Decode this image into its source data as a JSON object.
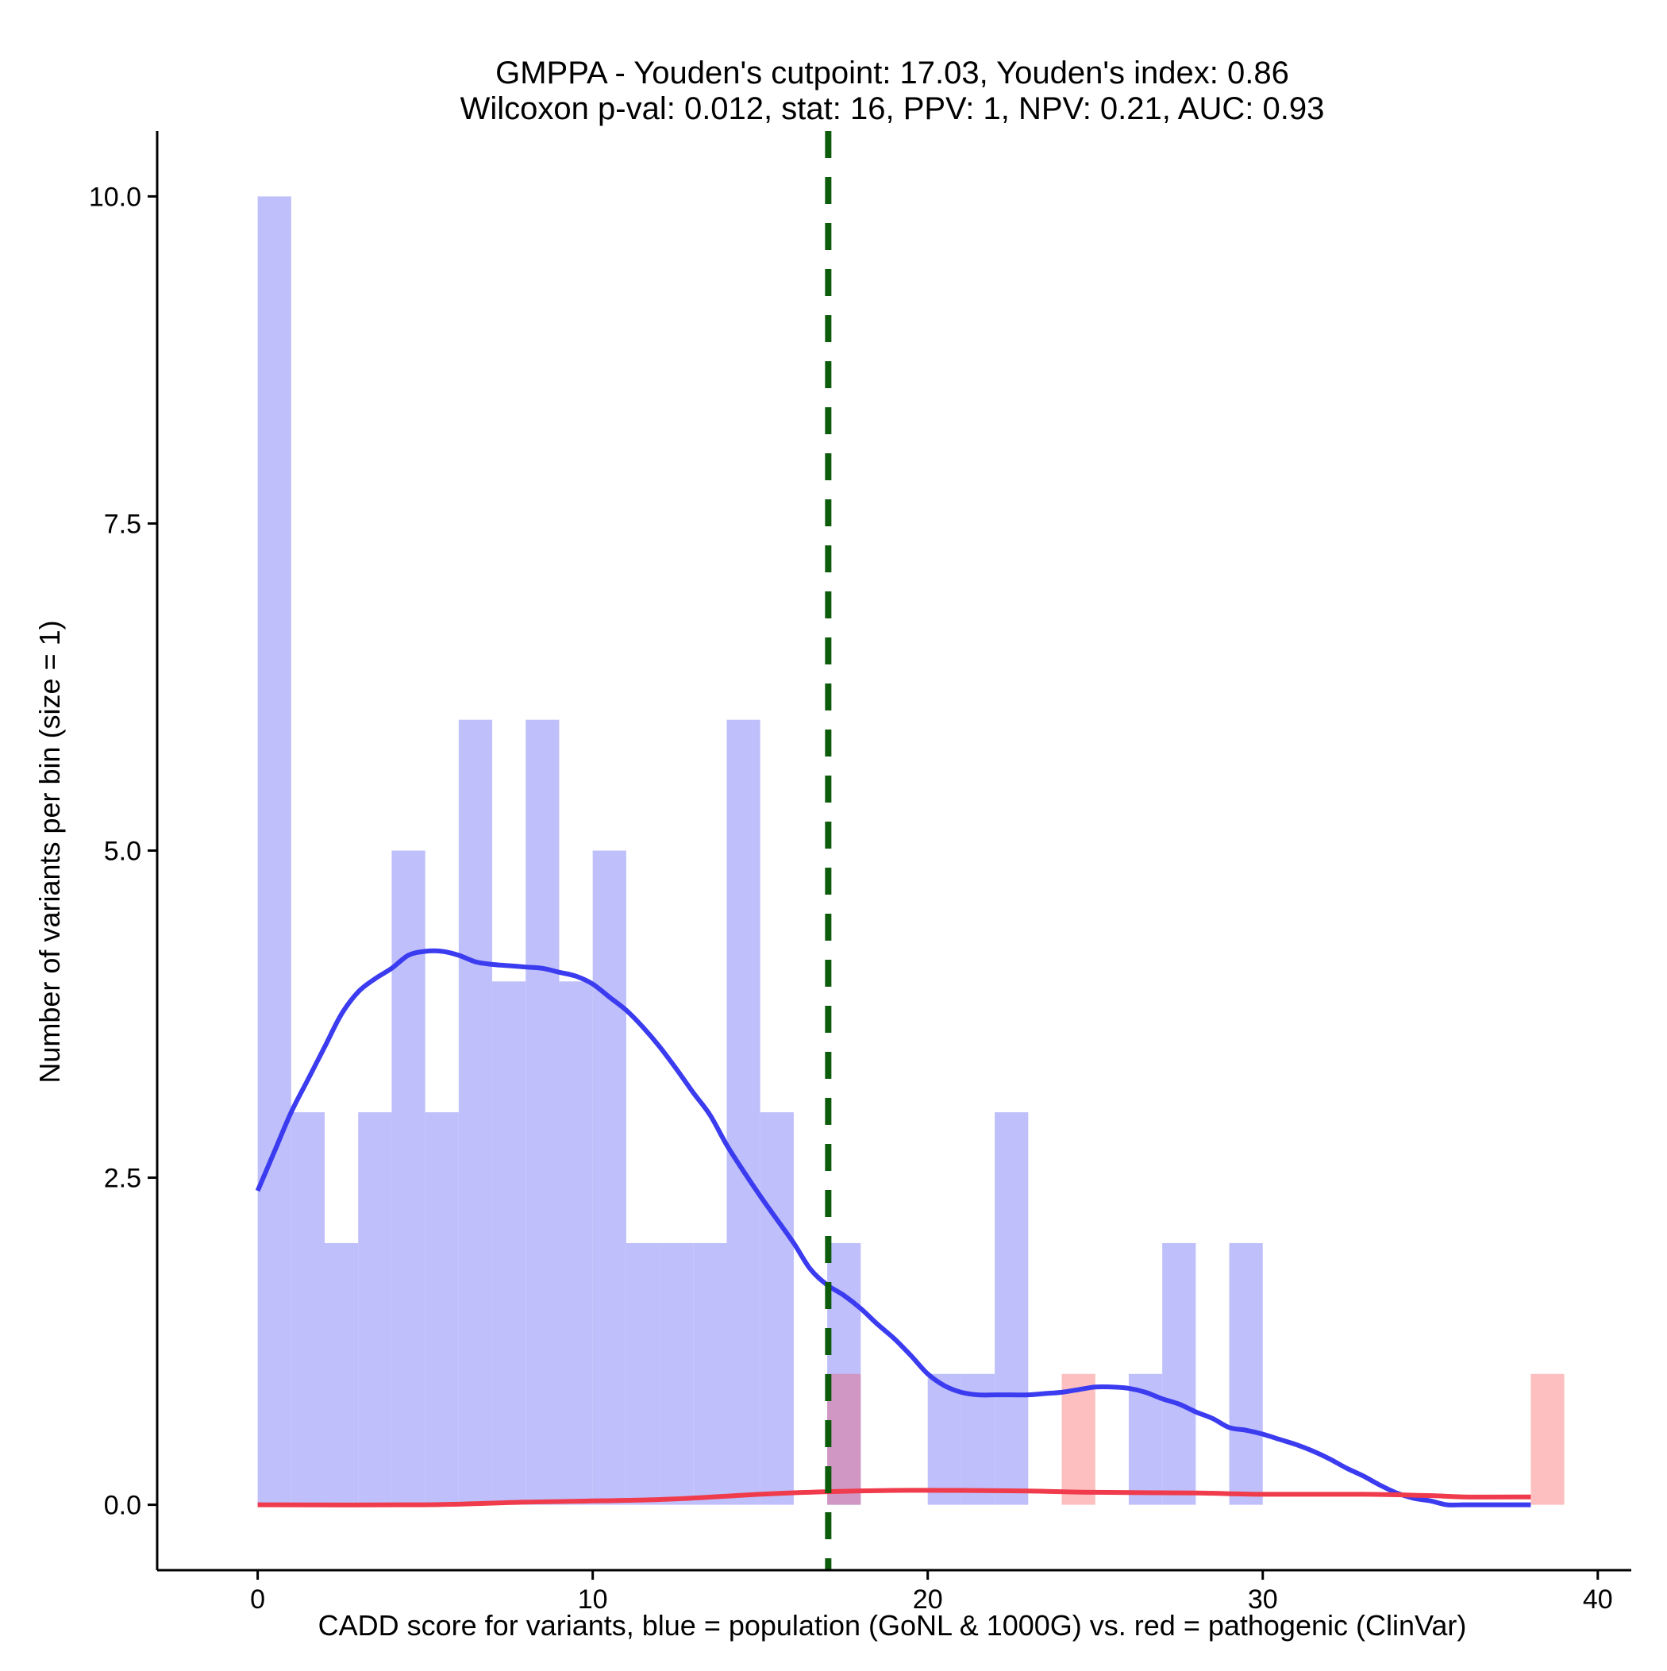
{
  "chart_data": {
    "type": "histogram",
    "title_lines": [
      "GMPPA - Youden's cutpoint: 17.03, Youden's index: 0.86",
      "Wilcoxon p-val: 0.012, stat: 16, PPV: 1, NPV: 0.21, AUC: 0.93"
    ],
    "xlabel": "CADD score for variants, blue = population (GoNL & 1000G) vs. red = pathogenic (ClinVar)",
    "ylabel": "Number of variants per bin (size = 1)",
    "xlim": [
      -3,
      41
    ],
    "ylim": [
      -0.5,
      10.5
    ],
    "x_ticks": [
      0,
      10,
      20,
      30,
      40
    ],
    "x_tick_labels": [
      "0",
      "10",
      "20",
      "30",
      "40"
    ],
    "y_ticks": [
      0,
      2.5,
      5,
      7.5,
      10
    ],
    "y_tick_labels": [
      "0.0",
      "2.5",
      "5.0",
      "7.5",
      "10.0"
    ],
    "bin_width": 1,
    "cutpoint": 17.03,
    "colors": {
      "population_bars": "#bfbffb",
      "pathogenic_bars": "#fdbfbf",
      "overlap_bars": "#d097c4",
      "population_density": "#3b3bf0",
      "pathogenic_density": "#ef3b4b",
      "cutpoint_line": "#0c5c0c",
      "axis": "#000000"
    },
    "series": [
      {
        "role": "population",
        "color_word": "blue",
        "bins": [
          {
            "start": 0,
            "count": 10
          },
          {
            "start": 1,
            "count": 3
          },
          {
            "start": 2,
            "count": 2
          },
          {
            "start": 3,
            "count": 3
          },
          {
            "start": 4,
            "count": 5
          },
          {
            "start": 5,
            "count": 3
          },
          {
            "start": 6,
            "count": 6
          },
          {
            "start": 7,
            "count": 4
          },
          {
            "start": 8,
            "count": 6
          },
          {
            "start": 9,
            "count": 4
          },
          {
            "start": 10,
            "count": 5
          },
          {
            "start": 11,
            "count": 2
          },
          {
            "start": 12,
            "count": 2
          },
          {
            "start": 13,
            "count": 2
          },
          {
            "start": 14,
            "count": 6
          },
          {
            "start": 15,
            "count": 3
          },
          {
            "start": 17,
            "count": 2
          },
          {
            "start": 20,
            "count": 1
          },
          {
            "start": 21,
            "count": 1
          },
          {
            "start": 22,
            "count": 3
          },
          {
            "start": 26,
            "count": 1
          },
          {
            "start": 27,
            "count": 2
          },
          {
            "start": 29,
            "count": 2
          }
        ],
        "density": [
          [
            0,
            2.4
          ],
          [
            0.5,
            2.7
          ],
          [
            1,
            3.0
          ],
          [
            1.5,
            3.25
          ],
          [
            2,
            3.5
          ],
          [
            2.5,
            3.75
          ],
          [
            3,
            3.92
          ],
          [
            3.5,
            4.02
          ],
          [
            4,
            4.1
          ],
          [
            4.5,
            4.2
          ],
          [
            5,
            4.23
          ],
          [
            5.5,
            4.23
          ],
          [
            6,
            4.2
          ],
          [
            6.5,
            4.15
          ],
          [
            7,
            4.13
          ],
          [
            7.5,
            4.12
          ],
          [
            8,
            4.11
          ],
          [
            8.5,
            4.1
          ],
          [
            9,
            4.07
          ],
          [
            9.5,
            4.04
          ],
          [
            10,
            3.98
          ],
          [
            10.5,
            3.88
          ],
          [
            11,
            3.78
          ],
          [
            11.5,
            3.65
          ],
          [
            12,
            3.5
          ],
          [
            12.5,
            3.33
          ],
          [
            13,
            3.15
          ],
          [
            13.5,
            2.98
          ],
          [
            14,
            2.75
          ],
          [
            14.5,
            2.55
          ],
          [
            15,
            2.36
          ],
          [
            15.5,
            2.18
          ],
          [
            16,
            2.0
          ],
          [
            16.5,
            1.8
          ],
          [
            17,
            1.68
          ],
          [
            17.5,
            1.6
          ],
          [
            18,
            1.5
          ],
          [
            18.5,
            1.38
          ],
          [
            19,
            1.27
          ],
          [
            19.5,
            1.14
          ],
          [
            20,
            1.0
          ],
          [
            20.5,
            0.91
          ],
          [
            21,
            0.86
          ],
          [
            21.5,
            0.84
          ],
          [
            22,
            0.84
          ],
          [
            22.5,
            0.84
          ],
          [
            23,
            0.84
          ],
          [
            23.5,
            0.85
          ],
          [
            24,
            0.86
          ],
          [
            24.5,
            0.88
          ],
          [
            25,
            0.9
          ],
          [
            25.5,
            0.9
          ],
          [
            26,
            0.89
          ],
          [
            26.5,
            0.86
          ],
          [
            27,
            0.81
          ],
          [
            27.5,
            0.77
          ],
          [
            28,
            0.71
          ],
          [
            28.5,
            0.66
          ],
          [
            29,
            0.59
          ],
          [
            29.5,
            0.57
          ],
          [
            30,
            0.54
          ],
          [
            30.5,
            0.5
          ],
          [
            31,
            0.46
          ],
          [
            31.5,
            0.41
          ],
          [
            32,
            0.35
          ],
          [
            32.5,
            0.28
          ],
          [
            33,
            0.22
          ],
          [
            33.5,
            0.15
          ],
          [
            34,
            0.09
          ],
          [
            34.5,
            0.05
          ],
          [
            35,
            0.03
          ],
          [
            35.5,
            0.0
          ],
          [
            36,
            0.0
          ],
          [
            37,
            0.0
          ],
          [
            38,
            0.0
          ]
        ]
      },
      {
        "role": "pathogenic",
        "color_word": "red",
        "bins": [
          {
            "start": 17,
            "count": 1
          },
          {
            "start": 24,
            "count": 1
          },
          {
            "start": 38,
            "count": 1
          }
        ],
        "density": [
          [
            0,
            0.0
          ],
          [
            5,
            0.0
          ],
          [
            8,
            0.02
          ],
          [
            12,
            0.04
          ],
          [
            15,
            0.08
          ],
          [
            17,
            0.1
          ],
          [
            19,
            0.11
          ],
          [
            21,
            0.11
          ],
          [
            23,
            0.105
          ],
          [
            25,
            0.095
          ],
          [
            28,
            0.09
          ],
          [
            30,
            0.08
          ],
          [
            33,
            0.08
          ],
          [
            35,
            0.07
          ],
          [
            36,
            0.06
          ],
          [
            38,
            0.06
          ]
        ]
      }
    ]
  }
}
